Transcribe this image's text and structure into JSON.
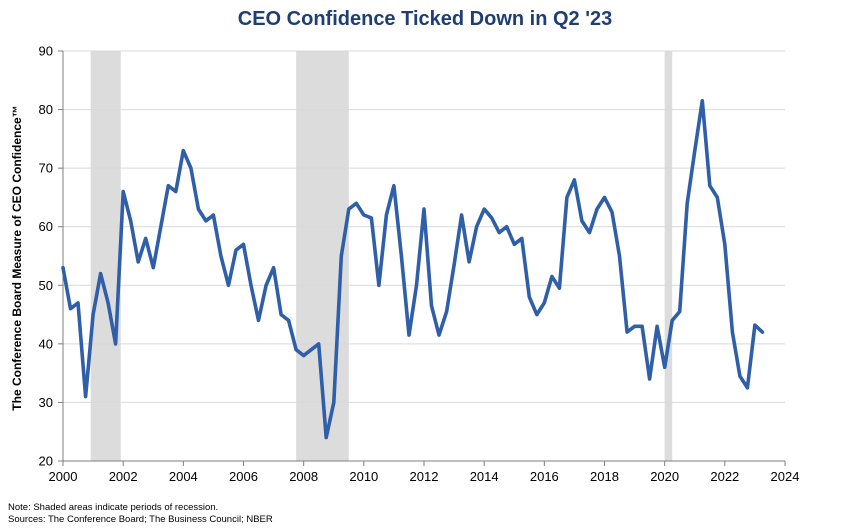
{
  "chart_data": {
    "type": "line",
    "title": "CEO Confidence Ticked Down in Q2 '23",
    "ylabel": "The Conference Board Measure of CEO Confidence™",
    "xlabel": "",
    "xlim": [
      2000,
      2024
    ],
    "ylim": [
      20,
      90
    ],
    "xticks": [
      "2000",
      "2002",
      "2004",
      "2006",
      "2008",
      "2010",
      "2012",
      "2014",
      "2016",
      "2018",
      "2020",
      "2022",
      "2024"
    ],
    "yticks": [
      "20",
      "30",
      "40",
      "50",
      "60",
      "70",
      "80",
      "90"
    ],
    "grid": "horizontal",
    "line_color": "#2e5fa8",
    "recession_color": "#dcdcdc",
    "recessions": [
      [
        2000.92,
        2001.92
      ],
      [
        2007.75,
        2009.5
      ],
      [
        2020.0,
        2020.25
      ]
    ],
    "series": [
      {
        "name": "",
        "x": [
          2000.0,
          2000.25,
          2000.5,
          2000.75,
          2001.0,
          2001.25,
          2001.5,
          2001.75,
          2002.0,
          2002.25,
          2002.5,
          2002.75,
          2003.0,
          2003.25,
          2003.5,
          2003.75,
          2004.0,
          2004.25,
          2004.5,
          2004.75,
          2005.0,
          2005.25,
          2005.5,
          2005.75,
          2006.0,
          2006.25,
          2006.5,
          2006.75,
          2007.0,
          2007.25,
          2007.5,
          2007.75,
          2008.0,
          2008.25,
          2008.5,
          2008.75,
          2009.0,
          2009.25,
          2009.5,
          2009.75,
          2010.0,
          2010.25,
          2010.5,
          2010.75,
          2011.0,
          2011.25,
          2011.5,
          2011.75,
          2012.0,
          2012.25,
          2012.5,
          2012.75,
          2013.0,
          2013.25,
          2013.5,
          2013.75,
          2014.0,
          2014.25,
          2014.5,
          2014.75,
          2015.0,
          2015.25,
          2015.5,
          2015.75,
          2016.0,
          2016.25,
          2016.5,
          2016.75,
          2017.0,
          2017.25,
          2017.5,
          2017.75,
          2018.0,
          2018.25,
          2018.5,
          2018.75,
          2019.0,
          2019.25,
          2019.5,
          2019.75,
          2020.0,
          2020.25,
          2020.5,
          2020.75,
          2021.0,
          2021.25,
          2021.5,
          2021.75,
          2022.0,
          2022.25,
          2022.5,
          2022.75,
          2023.0,
          2023.25
        ],
        "values": [
          53,
          46,
          47,
          31,
          45,
          52,
          47,
          40,
          66,
          61,
          54,
          58,
          53,
          60,
          67,
          66,
          73,
          70,
          63,
          61,
          62,
          55,
          50,
          56,
          57,
          50,
          44,
          50,
          53,
          45,
          44,
          39,
          38,
          39,
          40,
          24,
          30,
          55,
          63,
          64,
          62,
          61.5,
          50,
          62,
          67,
          55,
          41.5,
          50,
          63,
          46.5,
          41.5,
          45.5,
          53.5,
          62,
          54,
          60,
          63,
          61.5,
          59,
          60,
          57,
          58,
          48,
          45,
          47,
          51.5,
          49.5,
          65,
          68,
          61,
          59,
          63,
          65,
          62.5,
          55,
          42,
          43,
          43,
          34,
          43,
          36,
          44,
          45.5,
          64,
          73,
          81.5,
          67,
          65,
          57,
          42,
          34.5,
          32.5,
          43.2,
          42
        ]
      }
    ]
  },
  "notes": {
    "line1": "Note: Shaded areas indicate periods of  recession.",
    "line2": "Sources: The  Conference Board; The Business Council; NBER"
  }
}
